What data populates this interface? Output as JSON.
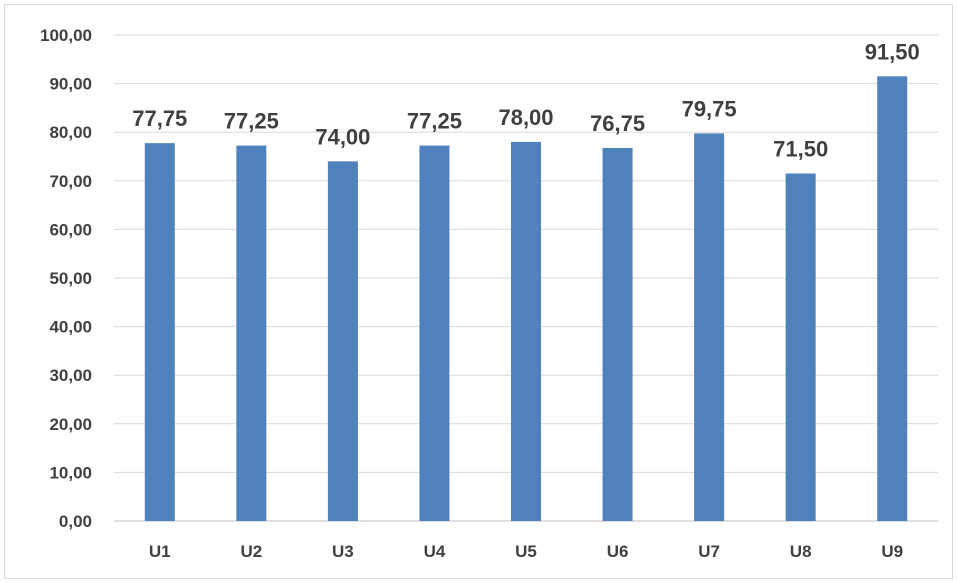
{
  "chart_data": {
    "type": "bar",
    "categories": [
      "U1",
      "U2",
      "U3",
      "U4",
      "U5",
      "U6",
      "U7",
      "U8",
      "U9"
    ],
    "values": [
      77.75,
      77.25,
      74.0,
      77.25,
      78.0,
      76.75,
      79.75,
      71.5,
      91.5
    ],
    "data_labels": [
      "77,75",
      "77,25",
      "74,00",
      "77,25",
      "78,00",
      "76,75",
      "79,75",
      "71,50",
      "91,50"
    ],
    "y_ticks": [
      "0,00",
      "10,00",
      "20,00",
      "30,00",
      "40,00",
      "50,00",
      "60,00",
      "70,00",
      "80,00",
      "90,00",
      "100,00"
    ],
    "ylim": [
      0,
      100
    ],
    "y_step": 10,
    "title": "",
    "xlabel": "",
    "ylabel": "",
    "grid": true,
    "legend": "none",
    "bar_color": "#4f81bd",
    "grid_color": "#d9d9d9",
    "text_color": "#404040"
  }
}
